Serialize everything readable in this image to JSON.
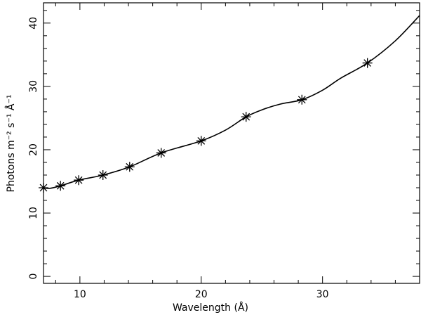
{
  "chart_data": {
    "type": "scatter",
    "xlabel": "Wavelength (Å)",
    "ylabel": "Photons m⁻² s⁻¹ Å⁻¹",
    "xlim": [
      7,
      38
    ],
    "ylim": [
      -1.1,
      43.2
    ],
    "xticks": [
      10,
      20,
      30
    ],
    "yticks": [
      0,
      10,
      20,
      30,
      40
    ],
    "xminorticks": [
      8,
      12,
      14,
      16,
      18,
      22,
      24,
      26,
      28,
      32,
      34,
      36,
      38
    ],
    "yminorticks": [
      2,
      4,
      6,
      8,
      12,
      14,
      16,
      18,
      22,
      24,
      26,
      28,
      32,
      34,
      36,
      38,
      42
    ],
    "color": "#000000",
    "series": [
      {
        "x": [
          7.0,
          8.4,
          9.9,
          11.9,
          14.1,
          16.7,
          20.0,
          23.7,
          28.3,
          33.7
        ],
        "values": [
          14.0,
          14.3,
          15.2,
          16.0,
          17.3,
          19.5,
          21.4,
          25.2,
          27.9,
          33.7
        ],
        "marker": "asterisk"
      },
      {
        "x": [
          7,
          7.5,
          8.4,
          9.9,
          11.9,
          14.1,
          16.7,
          20,
          22,
          23.7,
          25,
          26.5,
          28.3,
          30,
          31.5,
          33.7,
          36,
          38
        ],
        "values": [
          14.0,
          13.9,
          14.3,
          15.2,
          16.0,
          17.3,
          19.5,
          21.4,
          23.1,
          25.2,
          26.3,
          27.2,
          27.9,
          29.4,
          31.3,
          33.7,
          37.2,
          41.2
        ],
        "marker": "line"
      }
    ]
  }
}
